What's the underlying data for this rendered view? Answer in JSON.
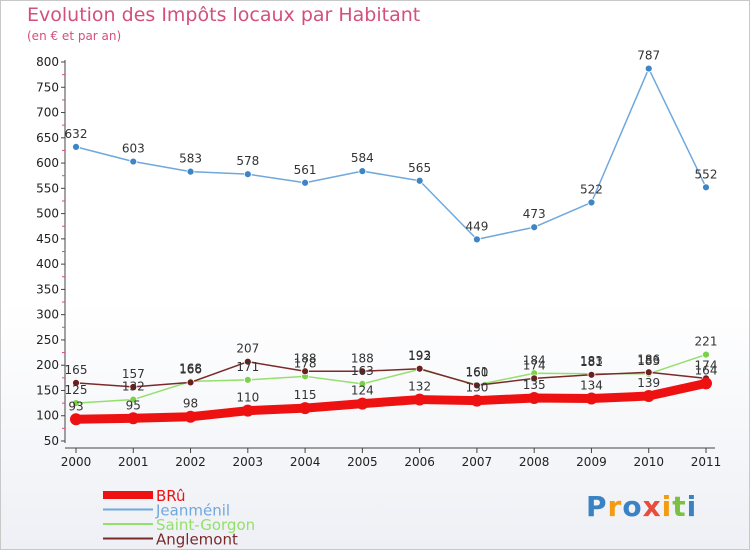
{
  "chart_data": {
    "type": "line",
    "title": "Evolution des Impôts locaux par Habitant",
    "subtitle": "(en € et par an)",
    "x": [
      "2000",
      "2001",
      "2002",
      "2003",
      "2004",
      "2005",
      "2006",
      "2007",
      "2008",
      "2009",
      "2010",
      "2011"
    ],
    "ylim": [
      50,
      800
    ],
    "yticks": [
      50,
      100,
      150,
      200,
      250,
      300,
      350,
      400,
      450,
      500,
      550,
      600,
      650,
      700,
      750,
      800
    ],
    "grid": false,
    "legend_position": "bottom-left",
    "series": [
      {
        "name": "Jeanménil",
        "color": "#6fa8dc",
        "marker": "#3d85c6",
        "values": [
          632,
          603,
          583,
          578,
          561,
          584,
          565,
          449,
          473,
          522,
          787,
          552
        ],
        "labels": [
          "632",
          "603",
          "583",
          "578",
          "561",
          "584",
          "565",
          "449",
          "473",
          "522",
          "787",
          "552"
        ]
      },
      {
        "name": "Saint-Gorgon",
        "color": "#93e06a",
        "marker": "#7ad14a",
        "values": [
          125,
          132,
          168,
          171,
          178,
          163,
          192,
          161,
          184,
          183,
          183,
          221
        ],
        "labels": [
          "125",
          "132",
          "168",
          "171",
          "178",
          "163",
          "192",
          "161",
          "184",
          "183",
          "183",
          "221"
        ]
      },
      {
        "name": "Anglemont",
        "color": "#7b2a2a",
        "marker": "#6b1f1f",
        "values": [
          165,
          157,
          166,
          207,
          188,
          188,
          193,
          160,
          174,
          181,
          186,
          174
        ],
        "labels": [
          "165",
          "157",
          "166",
          "207",
          "188",
          "188",
          "193",
          "160",
          "174",
          "181",
          "186",
          "174"
        ]
      },
      {
        "name": "BRû",
        "color": "#ee1111",
        "marker": "#ee1111",
        "values": [
          93,
          95,
          98,
          110,
          115,
          124,
          132,
          130,
          135,
          134,
          139,
          164
        ],
        "labels": [
          "93",
          "95",
          "98",
          "110",
          "115",
          "124",
          "132",
          "130",
          "135",
          "134",
          "139",
          "164"
        ]
      }
    ],
    "legend": [
      {
        "name": "BRû",
        "color": "#ee1111"
      },
      {
        "name": "Jeanménil",
        "color": "#6fa8dc"
      },
      {
        "name": "Saint-Gorgon",
        "color": "#93e06a"
      },
      {
        "name": "Anglemont",
        "color": "#7b2a2a"
      }
    ]
  },
  "logo": {
    "letters": [
      "P",
      "r",
      "o",
      "x",
      "i",
      "t",
      "i"
    ],
    "colors": [
      "#3b82c4",
      "#f39c12",
      "#3b82c4",
      "#e74c3c",
      "#f39c12",
      "#7ac143",
      "#3b82c4"
    ]
  }
}
